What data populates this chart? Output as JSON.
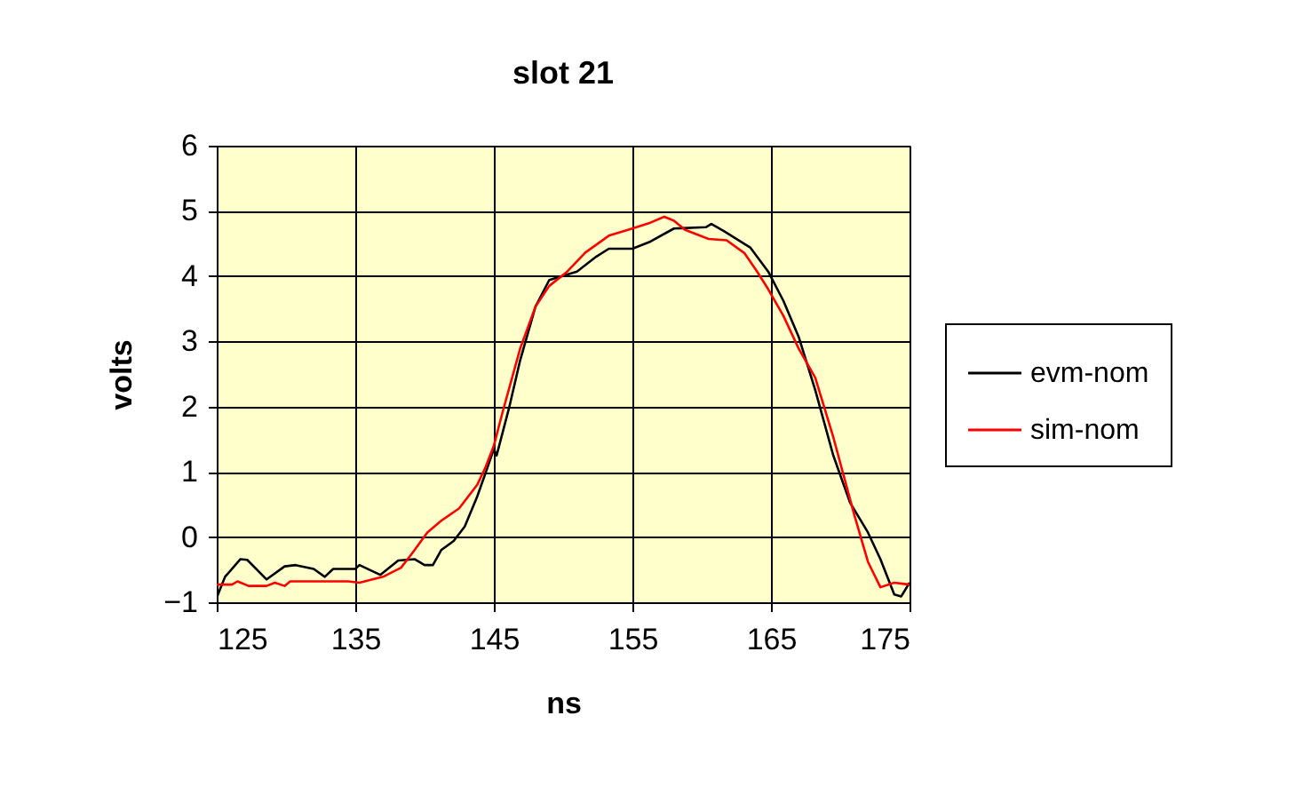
{
  "chart_data": {
    "type": "line",
    "title": "slot 21",
    "xlabel": "ns",
    "ylabel": "volts",
    "xlim": [
      125,
      175
    ],
    "xticks": [
      125,
      135,
      145,
      155,
      165,
      175
    ],
    "ylim": [
      -1,
      6
    ],
    "yticks": [
      -1,
      0,
      1,
      2,
      3,
      4,
      5,
      6
    ],
    "grid": true,
    "legend": "right",
    "series": [
      {
        "name": "evm-nom",
        "color": "#000000",
        "x": [
          125,
          125.6,
          126.7,
          127.2,
          128.6,
          129.9,
          130.7,
          132,
          132.8,
          133.4,
          135,
          135.3,
          136.8,
          138.1,
          139.3,
          140,
          140.6,
          141.2,
          142.1,
          142.9,
          143.8,
          144.4,
          145,
          145.2,
          146.1,
          146.9,
          148,
          149,
          151,
          152.4,
          153.3,
          155,
          156.3,
          158,
          160.3,
          160.7,
          161.6,
          163.5,
          164.8,
          165.9,
          167,
          168.2,
          169.5,
          170.7,
          172,
          172.9,
          173.9,
          174.4,
          175
        ],
        "values": [
          -0.93,
          -0.61,
          -0.34,
          -0.35,
          -0.65,
          -0.45,
          -0.43,
          -0.49,
          -0.61,
          -0.49,
          -0.49,
          -0.43,
          -0.58,
          -0.36,
          -0.34,
          -0.43,
          -0.43,
          -0.2,
          -0.06,
          0.16,
          0.62,
          0.98,
          1.35,
          1.25,
          1.98,
          2.71,
          3.53,
          3.94,
          4.07,
          4.3,
          4.42,
          4.42,
          4.53,
          4.73,
          4.75,
          4.8,
          4.69,
          4.44,
          4.07,
          3.62,
          3.07,
          2.25,
          1.25,
          0.53,
          0.07,
          -0.34,
          -0.88,
          -0.91,
          -0.7
        ]
      },
      {
        "name": "sim-nom",
        "color": "#ff0000",
        "x": [
          125,
          126.1,
          126.5,
          127.3,
          128.6,
          129.2,
          129.9,
          130.3,
          132.4,
          134.5,
          135.3,
          137,
          138.3,
          139.1,
          140.2,
          141.2,
          142.5,
          143.8,
          144.4,
          145,
          145.6,
          146.9,
          148,
          149,
          150.3,
          151.6,
          153.3,
          155,
          156.3,
          157.3,
          158,
          158.8,
          160.5,
          161.8,
          163.1,
          164,
          164.8,
          165.9,
          167,
          168.2,
          169.5,
          171,
          172,
          172.9,
          173.9,
          175
        ],
        "values": [
          -0.73,
          -0.73,
          -0.68,
          -0.75,
          -0.75,
          -0.7,
          -0.75,
          -0.68,
          -0.68,
          -0.68,
          -0.7,
          -0.61,
          -0.47,
          -0.25,
          0.07,
          0.25,
          0.44,
          0.8,
          1.07,
          1.4,
          1.89,
          2.89,
          3.53,
          3.85,
          4.07,
          4.36,
          4.62,
          4.73,
          4.82,
          4.91,
          4.85,
          4.71,
          4.57,
          4.55,
          4.35,
          4.07,
          3.8,
          3.39,
          2.89,
          2.44,
          1.53,
          0.35,
          -0.38,
          -0.77,
          -0.7,
          -0.73
        ]
      }
    ]
  }
}
